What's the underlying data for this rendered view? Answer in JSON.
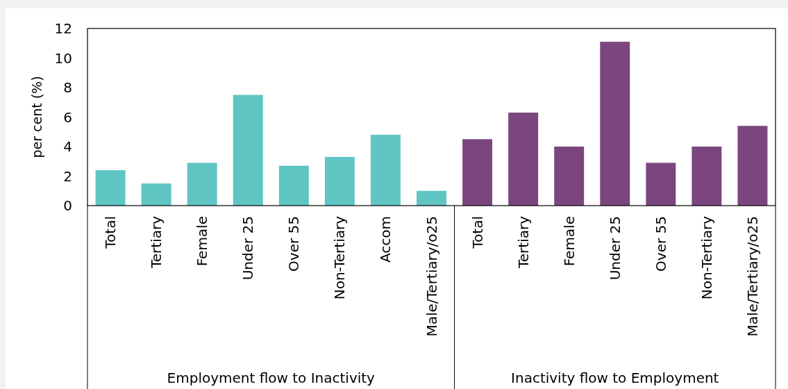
{
  "chart_data": {
    "type": "bar",
    "ylabel": "per cent (%)",
    "categories": [
      "Total",
      "Tertiary",
      "Female",
      "Under 25",
      "Over 55",
      "Non-Tertiary",
      "Accom",
      "Male/Tertiary/o25",
      "Total",
      "Tertiary",
      "Female",
      "Under 25",
      "Over 55",
      "Non-Tertiary",
      "Male/Tertiary/o25"
    ],
    "values": [
      2.4,
      1.5,
      2.9,
      7.5,
      2.7,
      3.3,
      4.8,
      1.0,
      4.5,
      6.3,
      4.0,
      11.1,
      2.9,
      4.0,
      5.4
    ],
    "colors": [
      "#5ec5c2",
      "#5ec5c2",
      "#5ec5c2",
      "#5ec5c2",
      "#5ec5c2",
      "#5ec5c2",
      "#5ec5c2",
      "#5ec5c2",
      "#7b467d",
      "#7b467d",
      "#7b467d",
      "#7b467d",
      "#7b467d",
      "#7b467d",
      "#7b467d"
    ],
    "annotations": [
      "Employment flow to Inactivity",
      "Inactivity flow to Employment"
    ],
    "ylim": [
      0,
      12
    ],
    "yticks": [
      0,
      2,
      4,
      6,
      8,
      10,
      12
    ]
  }
}
